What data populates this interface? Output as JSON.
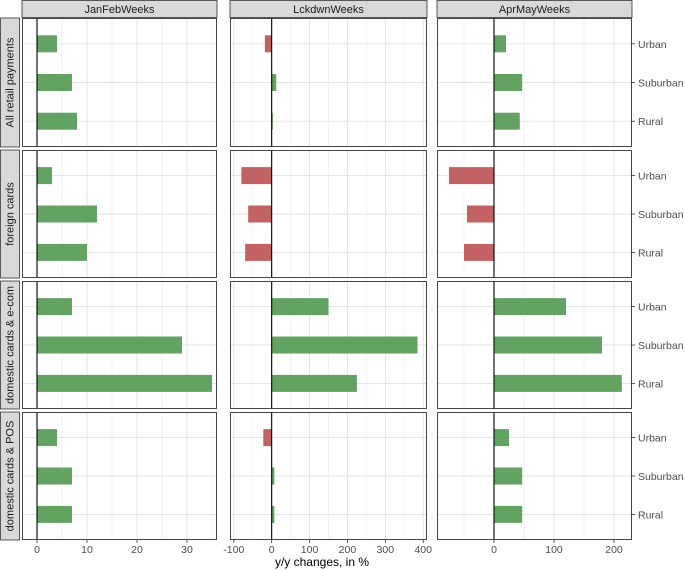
{
  "chart_data": {
    "type": "bar",
    "orientation": "horizontal",
    "xlabel": "y/y changes, in %",
    "colors": {
      "positive": "#5a9e5a",
      "negative": "#c05a5a"
    },
    "columns": [
      {
        "title": "JanFebWeeks",
        "xlim": [
          -3,
          36
        ],
        "ticks": [
          0,
          10,
          20,
          30
        ],
        "tick_labels": [
          "0",
          "10",
          "20",
          "30"
        ]
      },
      {
        "title": "LckdwnWeeks",
        "xlim": [
          -110,
          410
        ],
        "ticks": [
          -100,
          0,
          100,
          200,
          300,
          400
        ],
        "tick_labels": [
          "-100",
          "0",
          "100",
          "200",
          "300",
          "400"
        ]
      },
      {
        "title": "AprMayWeeks",
        "xlim": [
          -95,
          230
        ],
        "ticks": [
          0,
          100,
          200
        ],
        "tick_labels": [
          "0",
          "100",
          "200"
        ]
      }
    ],
    "rows": [
      {
        "title": "All retail payments"
      },
      {
        "title": "foreign cards"
      },
      {
        "title": "domestic cards & e-com"
      },
      {
        "title": "domestic cards & POS"
      }
    ],
    "categories": [
      "Urban",
      "Suburban",
      "Rural"
    ],
    "values": [
      [
        [
          4,
          7,
          8
        ],
        [
          -18,
          12,
          3
        ],
        [
          20,
          47,
          43
        ]
      ],
      [
        [
          3,
          12,
          10
        ],
        [
          -80,
          -62,
          -70
        ],
        [
          -75,
          -45,
          -50
        ]
      ],
      [
        [
          7,
          29,
          35
        ],
        [
          150,
          385,
          225
        ],
        [
          120,
          180,
          213
        ]
      ],
      [
        [
          4,
          7,
          7
        ],
        [
          -22,
          7,
          7
        ],
        [
          25,
          47,
          47
        ]
      ]
    ]
  }
}
